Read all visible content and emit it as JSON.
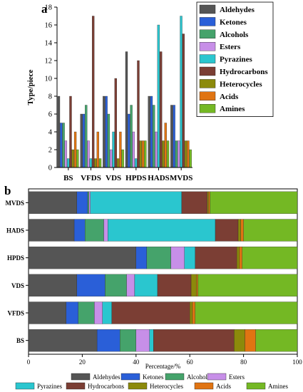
{
  "panel_labels": {
    "a": "a",
    "b": "b"
  },
  "colors": {
    "Aldehydes": "#555555",
    "Ketones": "#2a5fd8",
    "Alcohols": "#45a36b",
    "Esters": "#c78fe8",
    "Pyrazines": "#2ac6cf",
    "Hydrocarbons": "#7b3e34",
    "Heterocycles": "#8c8a0b",
    "Acids": "#e07412",
    "Amines": "#74b824"
  },
  "chart_data": [
    {
      "type": "bar",
      "title": "",
      "xlabel": "",
      "ylabel": "Type/piece",
      "ylim": [
        0,
        18
      ],
      "yticks": [
        0,
        2,
        4,
        6,
        8,
        10,
        12,
        14,
        16,
        18
      ],
      "categories": [
        "BS",
        "VFDS",
        "VDS",
        "HPDS",
        "HADS",
        "MVDS"
      ],
      "legend_position": "top-right, outside plot",
      "series": [
        {
          "name": "Aldehydes",
          "values": [
            8,
            6,
            8,
            13,
            8,
            7
          ]
        },
        {
          "name": "Ketones",
          "values": [
            5,
            6,
            8,
            6,
            8,
            7
          ]
        },
        {
          "name": "Alcohols",
          "values": [
            5,
            7,
            6,
            7,
            7,
            3
          ]
        },
        {
          "name": "Esters",
          "values": [
            3,
            3,
            2,
            4,
            4,
            3
          ]
        },
        {
          "name": "Pyrazines",
          "values": [
            1,
            1,
            4,
            1,
            16,
            17
          ]
        },
        {
          "name": "Hydrocarbons",
          "values": [
            8,
            17,
            10,
            12,
            13,
            15
          ]
        },
        {
          "name": "Heterocycles",
          "values": [
            2,
            1,
            1,
            3,
            3,
            3
          ]
        },
        {
          "name": "Acids",
          "values": [
            4,
            4,
            4,
            3,
            5,
            3
          ]
        },
        {
          "name": "Amines",
          "values": [
            2,
            1,
            2,
            3,
            3,
            2
          ]
        }
      ]
    },
    {
      "type": "bar",
      "orientation": "horizontal-stacked",
      "title": "",
      "xlabel": "Percentage/%",
      "ylabel": "",
      "xlim": [
        0,
        100
      ],
      "xticks": [
        0,
        20,
        40,
        60,
        80,
        100
      ],
      "categories": [
        "MVDS",
        "HADS",
        "HPDS",
        "VDS",
        "VFDS",
        "BS"
      ],
      "legend_position": "bottom, below plot",
      "series": [
        {
          "name": "Aldehydes",
          "values": [
            18,
            17,
            40,
            18,
            14,
            25.5
          ]
        },
        {
          "name": "Ketones",
          "values": [
            4,
            4,
            4,
            10.5,
            4.5,
            8.5
          ]
        },
        {
          "name": "Alcohols",
          "values": [
            0.5,
            7,
            9,
            8,
            6,
            6
          ]
        },
        {
          "name": "Esters",
          "values": [
            0.5,
            1.5,
            5,
            3,
            3,
            5
          ]
        },
        {
          "name": "Pyrazines",
          "values": [
            34,
            40,
            4,
            8.5,
            3.5,
            1.5
          ]
        },
        {
          "name": "Hydrocarbons",
          "values": [
            9.5,
            8.5,
            15.5,
            12.5,
            29,
            30
          ]
        },
        {
          "name": "Heterocycles",
          "values": [
            0.5,
            1,
            1,
            2,
            1,
            4
          ]
        },
        {
          "name": "Acids",
          "values": [
            0.5,
            1,
            1,
            0.5,
            1,
            4
          ]
        },
        {
          "name": "Amines",
          "values": [
            32.5,
            20,
            20.5,
            37,
            38,
            15.5
          ]
        }
      ]
    }
  ]
}
